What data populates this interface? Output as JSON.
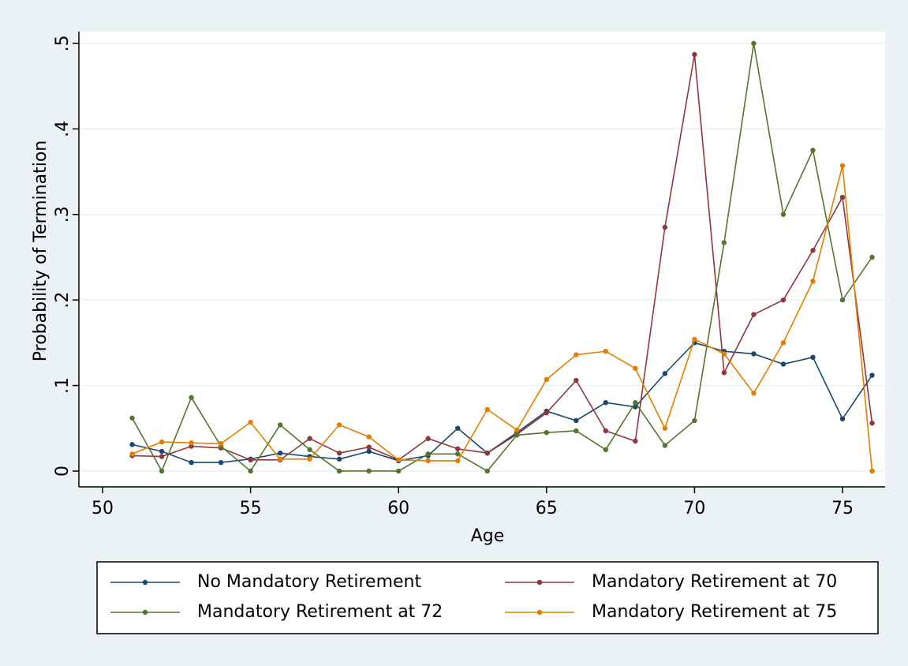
{
  "chart_data": {
    "type": "line",
    "x_label": "Age",
    "y_label": "Probability of Termination",
    "x": [
      51,
      52,
      53,
      54,
      55,
      56,
      57,
      58,
      59,
      60,
      61,
      62,
      63,
      64,
      65,
      66,
      67,
      68,
      69,
      70,
      71,
      72,
      73,
      74,
      75,
      76
    ],
    "series": [
      {
        "name": "No Mandatory Retirement",
        "color": "#1a476f",
        "values": [
          0.031,
          0.023,
          0.01,
          0.01,
          0.014,
          0.021,
          0.017,
          0.014,
          0.023,
          0.012,
          0.018,
          0.05,
          0.021,
          0.045,
          0.07,
          0.059,
          0.08,
          0.075,
          0.114,
          0.15,
          0.14,
          0.137,
          0.125,
          0.133,
          0.061,
          0.112
        ]
      },
      {
        "name": "Mandatory Retirement at 70",
        "color": "#90353b",
        "values": [
          0.018,
          0.017,
          0.029,
          0.027,
          0.013,
          0.013,
          0.038,
          0.021,
          0.028,
          0.013,
          0.038,
          0.026,
          0.021,
          0.043,
          0.068,
          0.106,
          0.047,
          0.035,
          0.285,
          0.487,
          0.115,
          0.183,
          0.2,
          0.258,
          0.32,
          0.056
        ]
      },
      {
        "name": "Mandatory Retirement at 72",
        "color": "#55752f",
        "values": [
          0.062,
          0.0,
          0.086,
          0.029,
          0.0,
          0.054,
          0.025,
          0.0,
          0.0,
          0.0,
          0.02,
          0.02,
          0.0,
          0.042,
          0.045,
          0.047,
          0.025,
          0.08,
          0.03,
          0.059,
          0.267,
          0.5,
          0.3,
          0.375,
          0.2,
          0.25
        ]
      },
      {
        "name": "Mandatory Retirement at 75",
        "color": "#e37e00",
        "values": [
          0.02,
          0.034,
          0.033,
          0.032,
          0.057,
          0.014,
          0.014,
          0.054,
          0.04,
          0.013,
          0.012,
          0.012,
          0.072,
          0.048,
          0.107,
          0.136,
          0.14,
          0.12,
          0.05,
          0.154,
          0.137,
          0.091,
          0.15,
          0.222,
          0.357,
          0.0
        ]
      }
    ],
    "xlim": [
      49.2,
      76.44
    ],
    "xticks": [
      50,
      55,
      60,
      65,
      70,
      75
    ],
    "ylim": [
      -0.0185,
      0.5138
    ],
    "yticks": [
      0,
      {
        "value": 0.1,
        "label": ".1"
      },
      {
        "value": 0.2,
        "label": ".2"
      },
      {
        "value": 0.3,
        "label": ".3"
      },
      {
        "value": 0.4,
        "label": ".4"
      },
      {
        "value": 0.5,
        "label": ".5"
      }
    ],
    "grid": true,
    "legend_position": "bottom"
  }
}
